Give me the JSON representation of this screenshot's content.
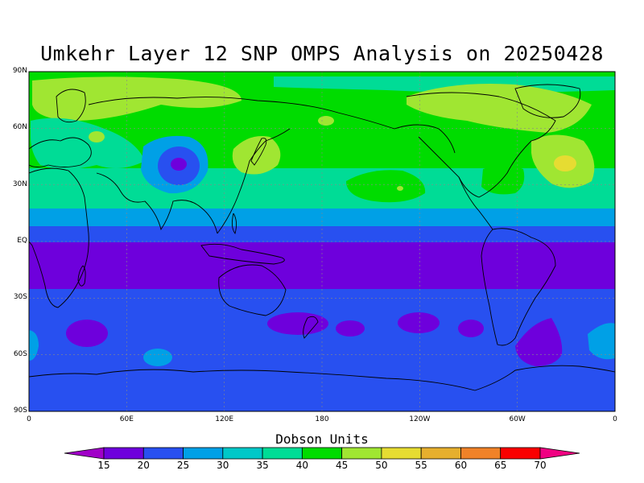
{
  "title": "Umkehr Layer 12 SNP OMPS Analysis on 20250428",
  "lat_labels": [
    {
      "lat": 90,
      "label": "90N"
    },
    {
      "lat": 60,
      "label": "60N"
    },
    {
      "lat": 30,
      "label": "30N"
    },
    {
      "lat": 0,
      "label": "EQ"
    },
    {
      "lat": -30,
      "label": "30S"
    },
    {
      "lat": -60,
      "label": "60S"
    },
    {
      "lat": -90,
      "label": "90S"
    }
  ],
  "lon_labels": [
    {
      "lon": 0,
      "label": "0"
    },
    {
      "lon": 60,
      "label": "60E"
    },
    {
      "lon": 120,
      "label": "120E"
    },
    {
      "lon": 180,
      "label": "180"
    },
    {
      "lon": 240,
      "label": "120W"
    },
    {
      "lon": 300,
      "label": "60W"
    },
    {
      "lon": 360,
      "label": "0"
    }
  ],
  "colorbar": {
    "title": "Dobson Units",
    "ticks": [
      "15",
      "20",
      "25",
      "30",
      "35",
      "40",
      "45",
      "50",
      "55",
      "60",
      "65",
      "70"
    ],
    "colors": [
      "#a000c8",
      "#6e00dc",
      "#2850f0",
      "#00a0e6",
      "#00c8c8",
      "#00dc96",
      "#00dc00",
      "#a0e632",
      "#e6dc32",
      "#e6af2d",
      "#f08228",
      "#fa0000",
      "#f00082"
    ]
  },
  "map_data": {
    "type": "filled-contour",
    "projection": "equirectangular",
    "lon_range": [
      0,
      360
    ],
    "lat_range": [
      -90,
      90
    ],
    "grid": true,
    "zones": [
      {
        "lat": [
          90,
          72
        ],
        "value": "40-45"
      },
      {
        "lat": [
          72,
          40
        ],
        "value": "40-45"
      },
      {
        "lat": [
          40,
          18
        ],
        "value": "35-40"
      },
      {
        "lat": [
          18,
          8
        ],
        "value": "30-35"
      },
      {
        "lat": [
          8,
          0
        ],
        "value": "20-25"
      },
      {
        "lat": [
          0,
          -25
        ],
        "value": "15-20"
      },
      {
        "lat": [
          -25,
          -65
        ],
        "value": "20-25"
      },
      {
        "lat": [
          -65,
          -90
        ],
        "value": "20-25"
      }
    ]
  }
}
